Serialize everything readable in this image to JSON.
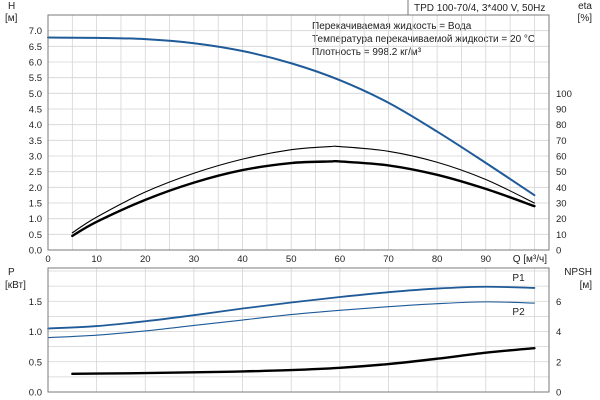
{
  "title": "TPD 100-70/4, 3*400 V, 50Hz",
  "annotations": [
    "Перекачиваемая жидкость = Вода",
    "Температура перекачиваемой жидкости = 20 °C",
    "Плотность = 998.2 кг/м³"
  ],
  "colors": {
    "blue": "#1f5a99",
    "black": "#000000",
    "grid": "#d4d4d4"
  },
  "chart_data": [
    {
      "type": "line",
      "panel": "top",
      "xlabel": "Q [м³/ч]",
      "xlim": [
        0,
        103
      ],
      "xticks": [
        0,
        10,
        20,
        30,
        40,
        50,
        60,
        70,
        80,
        90
      ],
      "ylabel": [
        "H",
        "[м]"
      ],
      "ylim": [
        0,
        7.5
      ],
      "yticks": [
        "0.0",
        "0.5",
        "1.0",
        "1.5",
        "2.0",
        "2.5",
        "3.0",
        "3.5",
        "4.0",
        "4.5",
        "5.0",
        "5.5",
        "6.0",
        "6.5",
        "7.0"
      ],
      "y2label": [
        "eta",
        "[%]"
      ],
      "y2lim": [
        0,
        150
      ],
      "y2ticks": [
        0,
        10,
        20,
        30,
        40,
        50,
        60,
        70,
        80,
        90,
        100
      ],
      "grid": true,
      "series": [
        {
          "axis": "left",
          "color": "blue",
          "width": 2,
          "x": [
            0,
            10,
            20,
            30,
            40,
            50,
            60,
            70,
            80,
            90,
            100
          ],
          "y": [
            6.78,
            6.77,
            6.73,
            6.6,
            6.35,
            5.96,
            5.42,
            4.7,
            3.78,
            2.78,
            1.75
          ]
        },
        {
          "axis": "right",
          "color": "black",
          "width": 1.1,
          "x": [
            5,
            10,
            20,
            30,
            40,
            50,
            58,
            60,
            70,
            80,
            90,
            100
          ],
          "y": [
            11,
            21,
            37,
            49,
            58,
            64,
            66,
            66,
            63,
            56,
            45,
            30
          ]
        },
        {
          "axis": "right",
          "color": "black",
          "width": 2.4,
          "x": [
            5,
            10,
            20,
            30,
            40,
            50,
            58,
            60,
            70,
            80,
            90,
            100
          ],
          "y": [
            9,
            18,
            32,
            43,
            51,
            55.5,
            56.5,
            56.5,
            54,
            48,
            39,
            28
          ]
        }
      ]
    },
    {
      "type": "line",
      "panel": "bottom",
      "xlim": [
        0,
        103
      ],
      "ylabel": [
        "P",
        "[кВт]"
      ],
      "ylim": [
        0,
        2.05
      ],
      "yticks": [
        "0.0",
        "0.5",
        "1.0",
        "1.5"
      ],
      "y2label": [
        "NPSH",
        "[м]"
      ],
      "y2lim": [
        0,
        8.2
      ],
      "y2ticks": [
        0,
        2,
        4,
        6
      ],
      "grid": true,
      "series": [
        {
          "name": "P1",
          "axis": "left",
          "color": "blue",
          "width": 1.8,
          "x": [
            0,
            10,
            20,
            30,
            40,
            50,
            60,
            70,
            80,
            90,
            100
          ],
          "y": [
            1.05,
            1.09,
            1.17,
            1.27,
            1.38,
            1.48,
            1.57,
            1.65,
            1.71,
            1.74,
            1.72
          ]
        },
        {
          "name": "P2",
          "axis": "left",
          "color": "blue",
          "width": 1.1,
          "x": [
            0,
            10,
            20,
            30,
            40,
            50,
            60,
            70,
            80,
            90,
            100
          ],
          "y": [
            0.9,
            0.94,
            1.01,
            1.1,
            1.19,
            1.28,
            1.35,
            1.41,
            1.46,
            1.49,
            1.47
          ]
        },
        {
          "axis": "right",
          "color": "black",
          "width": 2.4,
          "x": [
            5,
            10,
            20,
            30,
            40,
            50,
            60,
            70,
            80,
            90,
            100
          ],
          "y": [
            1.2,
            1.22,
            1.25,
            1.3,
            1.36,
            1.45,
            1.6,
            1.85,
            2.2,
            2.6,
            2.9
          ]
        }
      ]
    }
  ]
}
